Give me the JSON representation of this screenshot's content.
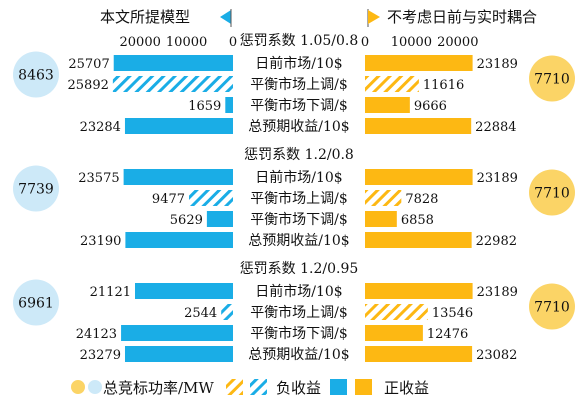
{
  "colors": {
    "blue": "#1AADE6",
    "orange": "#FDB813",
    "blue_circle": "#CDE9F8",
    "orange_circle": "#FBD466",
    "row_label_bg": "#ffffff"
  },
  "chart_data": {
    "type": "bar",
    "layout": "back-to-back horizontal bars",
    "legend": {
      "left_title": "本文所提模型",
      "right_title": "不考虑日前与实时耦合",
      "bottom": {
        "circle_label": "总竞标功率/MW",
        "negative_label": "负收益",
        "positive_label": "正收益"
      }
    },
    "axis": {
      "left_ticks": [
        "20000",
        "10000",
        "0"
      ],
      "right_ticks": [
        "0",
        "10000",
        "20000"
      ],
      "max": 25000
    },
    "groups": [
      {
        "title": "惩罚系数 1.05/0.8",
        "left_total_bid": "8463",
        "right_total_bid": "7710",
        "rows": [
          {
            "label": "日前市场/10$",
            "left": 25707,
            "left_sign": "positive",
            "right": 23189,
            "right_sign": "positive"
          },
          {
            "label": "平衡市场上调/$",
            "left": 25892,
            "left_sign": "negative",
            "right": 11616,
            "right_sign": "negative"
          },
          {
            "label": "平衡市场下调/$",
            "left": 1659,
            "left_sign": "positive",
            "right": 9666,
            "right_sign": "positive"
          },
          {
            "label": "总预期收益/10$",
            "left": 23284,
            "left_sign": "positive",
            "right": 22884,
            "right_sign": "positive"
          }
        ]
      },
      {
        "title": "惩罚系数 1.2/0.8",
        "left_total_bid": "7739",
        "right_total_bid": "7710",
        "rows": [
          {
            "label": "日前市场/10$",
            "left": 23575,
            "left_sign": "positive",
            "right": 23189,
            "right_sign": "positive"
          },
          {
            "label": "平衡市场上调/$",
            "left": 9477,
            "left_sign": "negative",
            "right": 7828,
            "right_sign": "negative"
          },
          {
            "label": "平衡市场下调/$",
            "left": 5629,
            "left_sign": "positive",
            "right": 6858,
            "right_sign": "positive"
          },
          {
            "label": "总预期收益/10$",
            "left": 23190,
            "left_sign": "positive",
            "right": 22982,
            "right_sign": "positive"
          }
        ]
      },
      {
        "title": "惩罚系数 1.2/0.95",
        "left_total_bid": "6961",
        "right_total_bid": "7710",
        "rows": [
          {
            "label": "日前市场/10$",
            "left": 21121,
            "left_sign": "positive",
            "right": 23189,
            "right_sign": "positive"
          },
          {
            "label": "平衡市场上调/$",
            "left": 2544,
            "left_sign": "negative",
            "right": 13546,
            "right_sign": "negative"
          },
          {
            "label": "平衡市场下调/$",
            "left": 24123,
            "left_sign": "positive",
            "right": 12476,
            "right_sign": "positive"
          },
          {
            "label": "总预期收益/10$",
            "left": 23279,
            "left_sign": "positive",
            "right": 23082,
            "right_sign": "positive"
          }
        ]
      }
    ]
  }
}
